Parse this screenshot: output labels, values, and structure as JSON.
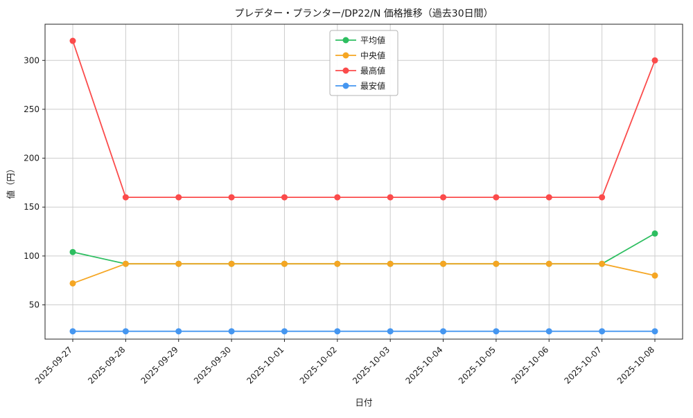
{
  "figure": {
    "title": "プレデター・プランター/DP22/N 価格推移（過去30日間）"
  },
  "chart_data": {
    "type": "line",
    "title": "プレデター・プランター/DP22/N 価格推移（過去30日間）",
    "xlabel": "日付",
    "ylabel": "値（円）",
    "x": [
      "2025-09-27",
      "2025-09-28",
      "2025-09-29",
      "2025-09-30",
      "2025-10-01",
      "2025-10-02",
      "2025-10-03",
      "2025-10-04",
      "2025-10-05",
      "2025-10-06",
      "2025-10-07",
      "2025-10-08"
    ],
    "yticks": [
      50,
      100,
      150,
      200,
      250,
      300
    ],
    "ylim": [
      15,
      337
    ],
    "grid": true,
    "legend_position": "upper center",
    "series": [
      {
        "name": "平均値",
        "color": "#2dbe60",
        "values": [
          104,
          92,
          92,
          92,
          92,
          92,
          92,
          92,
          92,
          92,
          92,
          123
        ]
      },
      {
        "name": "中央値",
        "color": "#f5a623",
        "values": [
          72,
          92,
          92,
          92,
          92,
          92,
          92,
          92,
          92,
          92,
          92,
          80
        ]
      },
      {
        "name": "最高値",
        "color": "#fb4b4b",
        "values": [
          320,
          160,
          160,
          160,
          160,
          160,
          160,
          160,
          160,
          160,
          160,
          300
        ]
      },
      {
        "name": "最安値",
        "color": "#4596f0",
        "values": [
          23,
          23,
          23,
          23,
          23,
          23,
          23,
          23,
          23,
          23,
          23,
          23
        ]
      }
    ],
    "colors": {
      "grid": "#cccccc",
      "spine": "#222222",
      "legend_border": "#b3b3b3"
    }
  }
}
